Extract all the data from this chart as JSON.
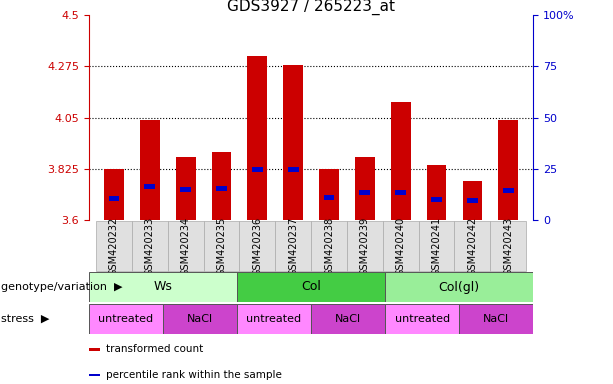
{
  "title": "GDS3927 / 265223_at",
  "samples": [
    "GSM420232",
    "GSM420233",
    "GSM420234",
    "GSM420235",
    "GSM420236",
    "GSM420237",
    "GSM420238",
    "GSM420239",
    "GSM420240",
    "GSM420241",
    "GSM420242",
    "GSM420243"
  ],
  "bar_values": [
    3.825,
    4.04,
    3.875,
    3.9,
    4.32,
    4.28,
    3.825,
    3.875,
    4.12,
    3.84,
    3.77,
    4.04
  ],
  "blue_marker_values": [
    3.695,
    3.745,
    3.735,
    3.74,
    3.82,
    3.82,
    3.7,
    3.72,
    3.72,
    3.69,
    3.685,
    3.73
  ],
  "ymin": 3.6,
  "ymax": 4.5,
  "yticks_left": [
    3.6,
    3.825,
    4.05,
    4.275,
    4.5
  ],
  "yticks_right": [
    0,
    25,
    50,
    75,
    100
  ],
  "ytick_labels_left": [
    "3.6",
    "3.825",
    "4.05",
    "4.275",
    "4.5"
  ],
  "ytick_labels_right": [
    "0",
    "25",
    "50",
    "75",
    "100%"
  ],
  "gridlines": [
    3.825,
    4.05,
    4.275
  ],
  "bar_color": "#cc0000",
  "blue_color": "#0000cc",
  "bar_width": 0.55,
  "genotype_groups": [
    {
      "label": "Ws",
      "start": 0,
      "end": 4,
      "color": "#ccffcc"
    },
    {
      "label": "Col",
      "start": 4,
      "end": 8,
      "color": "#44cc44"
    },
    {
      "label": "Col(gl)",
      "start": 8,
      "end": 12,
      "color": "#99ee99"
    }
  ],
  "stress_groups": [
    {
      "label": "untreated",
      "start": 0,
      "end": 2,
      "color": "#ff88ff"
    },
    {
      "label": "NaCl",
      "start": 2,
      "end": 4,
      "color": "#cc44cc"
    },
    {
      "label": "untreated",
      "start": 4,
      "end": 6,
      "color": "#ff88ff"
    },
    {
      "label": "NaCl",
      "start": 6,
      "end": 8,
      "color": "#cc44cc"
    },
    {
      "label": "untreated",
      "start": 8,
      "end": 10,
      "color": "#ff88ff"
    },
    {
      "label": "NaCl",
      "start": 10,
      "end": 12,
      "color": "#cc44cc"
    }
  ],
  "legend_items": [
    {
      "label": "transformed count",
      "color": "#cc0000"
    },
    {
      "label": "percentile rank within the sample",
      "color": "#0000cc"
    }
  ],
  "bg_color": "#ffffff",
  "tick_label_color_left": "#cc0000",
  "tick_label_color_right": "#0000cc",
  "title_fontsize": 11,
  "tick_fontsize": 8,
  "sample_fontsize": 7,
  "row_label_fontsize": 8,
  "geno_fontsize": 9,
  "stress_fontsize": 8
}
